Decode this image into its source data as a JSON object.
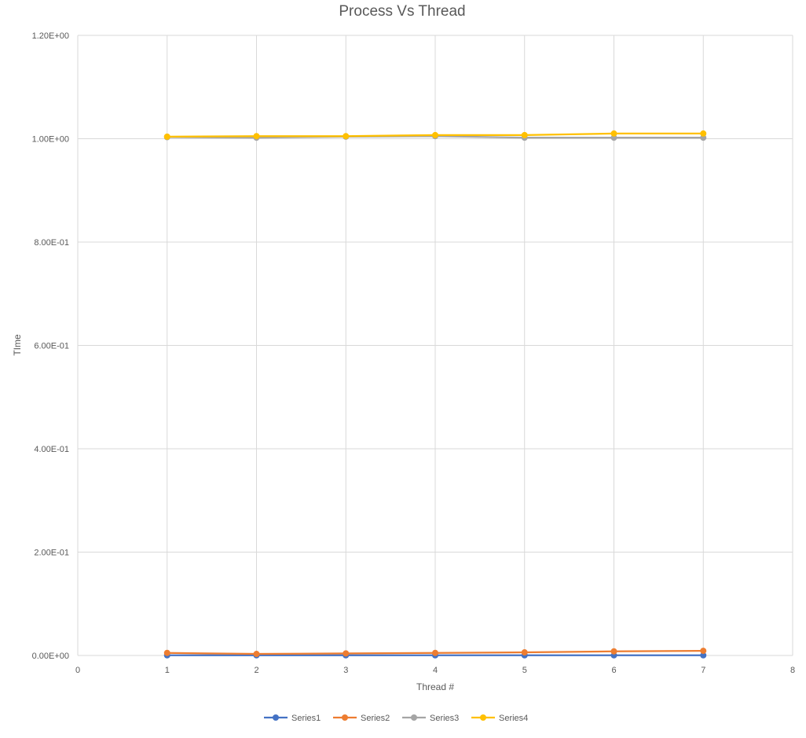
{
  "chart_data": {
    "type": "scatter",
    "title": "Process Vs Thread",
    "xlabel": "Thread #",
    "ylabel": "TIme",
    "xlim": [
      0,
      8
    ],
    "ylim": [
      0,
      1.2
    ],
    "x_ticks": [
      0,
      1,
      2,
      3,
      4,
      5,
      6,
      7,
      8
    ],
    "x_tick_labels": [
      "0",
      "1",
      "2",
      "3",
      "4",
      "5",
      "6",
      "7",
      "8"
    ],
    "y_ticks": [
      0,
      0.2,
      0.4,
      0.6,
      0.8,
      1.0,
      1.2
    ],
    "y_tick_labels": [
      "0.00E+00",
      "2.00E-01",
      "4.00E-01",
      "6.00E-01",
      "8.00E-01",
      "1.00E+00",
      "1.20E+00"
    ],
    "grid": true,
    "legend_position": "bottom",
    "x": [
      1,
      2,
      3,
      4,
      5,
      6,
      7
    ],
    "series": [
      {
        "name": "Series1",
        "color": "#4472c4",
        "values": [
          0.0003,
          0.0003,
          0.0003,
          0.0003,
          0.0003,
          0.0003,
          0.0003
        ]
      },
      {
        "name": "Series2",
        "color": "#ed7d31",
        "values": [
          0.005,
          0.003,
          0.004,
          0.005,
          0.006,
          0.008,
          0.009
        ]
      },
      {
        "name": "Series3",
        "color": "#a5a5a5",
        "values": [
          1.003,
          1.002,
          1.004,
          1.005,
          1.002,
          1.002,
          1.002
        ]
      },
      {
        "name": "Series4",
        "color": "#ffc000",
        "values": [
          1.004,
          1.005,
          1.005,
          1.007,
          1.007,
          1.01,
          1.01
        ]
      }
    ]
  }
}
